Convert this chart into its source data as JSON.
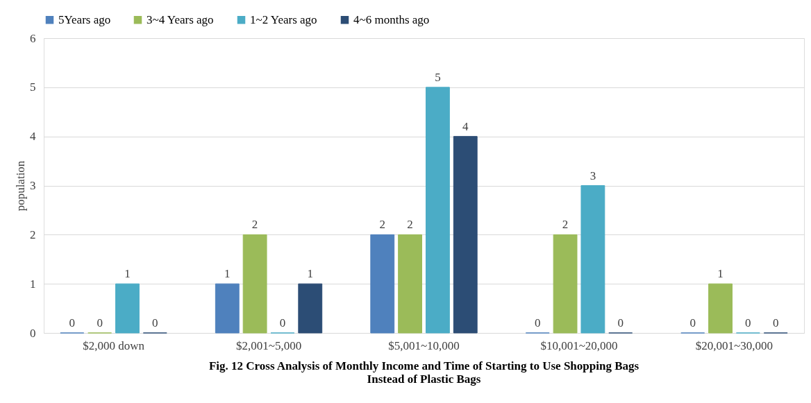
{
  "chart_data": {
    "type": "bar",
    "ylabel": "population",
    "categories": [
      "$2,000 down",
      "$2,001~5,000",
      "$5,001~10,000",
      "$10,001~20,000",
      "$20,001~30,000"
    ],
    "series": [
      {
        "name": "5Years ago",
        "color": "#4f81bd",
        "values": [
          0,
          1,
          2,
          0,
          0
        ]
      },
      {
        "name": "3~4 Years ago",
        "color": "#9bbb59",
        "values": [
          0,
          2,
          2,
          2,
          1
        ]
      },
      {
        "name": "1~2 Years ago",
        "color": "#4bacc6",
        "values": [
          1,
          0,
          5,
          3,
          0
        ]
      },
      {
        "name": "4~6 months ago",
        "color": "#2c4d75",
        "values": [
          0,
          1,
          4,
          0,
          0
        ]
      }
    ],
    "ylim": [
      0,
      6
    ],
    "yticks": [
      0,
      1,
      2,
      3,
      4,
      5,
      6
    ],
    "grid": "y",
    "legend": "top",
    "data_labels": true,
    "annotations": [
      "Fig. 12 Cross Analysis of Monthly Income and Time of Starting to Use Shopping Bags Instead of Plastic Bags"
    ]
  }
}
